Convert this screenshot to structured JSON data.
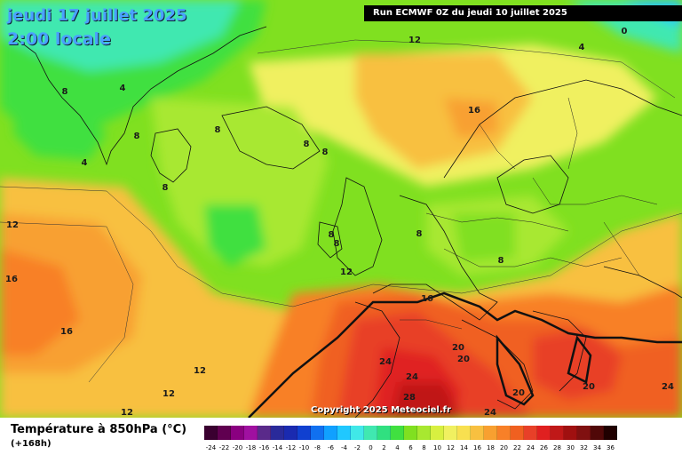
{
  "header": {
    "date": "jeudi 17 juillet 2025",
    "time": "2:00 locale",
    "run": "Run ECMWF 0Z du jeudi 10 juillet 2025"
  },
  "copyright": "Copyright 2025 Meteociel.fr",
  "legend": {
    "title": "Température à 850hPa (°C)",
    "subtitle": "(+168h)",
    "ticks": [
      "-24",
      "-22",
      "-20",
      "-18",
      "-16",
      "-14",
      "-12",
      "-10",
      "-8",
      "-6",
      "-4",
      "-2",
      "0",
      "2",
      "4",
      "6",
      "8",
      "10",
      "12",
      "14",
      "16",
      "18",
      "20",
      "22",
      "24",
      "26",
      "28",
      "30",
      "32",
      "34",
      "36"
    ],
    "colors": [
      "#3a0030",
      "#600050",
      "#8a0080",
      "#a010a0",
      "#5a2a8a",
      "#2a2a9a",
      "#1a2ab0",
      "#1040d0",
      "#1070f0",
      "#10a0ff",
      "#20c8ff",
      "#40e8e8",
      "#40e8b0",
      "#30e080",
      "#40e040",
      "#80e020",
      "#a8e830",
      "#d8f040",
      "#f0f060",
      "#f8e050",
      "#f8c040",
      "#f8a030",
      "#f88028",
      "#f06020",
      "#e84028",
      "#e02020",
      "#c01818",
      "#a01010",
      "#801010",
      "#500808",
      "#200000"
    ]
  },
  "map": {
    "isotherm_labels": [
      {
        "text": "12"
      },
      {
        "text": "4"
      },
      {
        "text": "0"
      },
      {
        "text": "4"
      },
      {
        "text": "8"
      },
      {
        "text": "8"
      },
      {
        "text": "8"
      },
      {
        "text": "4"
      },
      {
        "text": "8"
      },
      {
        "text": "8"
      },
      {
        "text": "8"
      },
      {
        "text": "16"
      },
      {
        "text": "12"
      },
      {
        "text": "16"
      },
      {
        "text": "8"
      },
      {
        "text": "8"
      },
      {
        "text": "8"
      },
      {
        "text": "8"
      },
      {
        "text": "12"
      },
      {
        "text": "16"
      },
      {
        "text": "16"
      },
      {
        "text": "20"
      },
      {
        "text": "20"
      },
      {
        "text": "24"
      },
      {
        "text": "24"
      },
      {
        "text": "20"
      },
      {
        "text": "20"
      },
      {
        "text": "24"
      },
      {
        "text": "28"
      },
      {
        "text": "24"
      },
      {
        "text": "12"
      },
      {
        "text": "12"
      },
      {
        "text": "12"
      }
    ]
  }
}
